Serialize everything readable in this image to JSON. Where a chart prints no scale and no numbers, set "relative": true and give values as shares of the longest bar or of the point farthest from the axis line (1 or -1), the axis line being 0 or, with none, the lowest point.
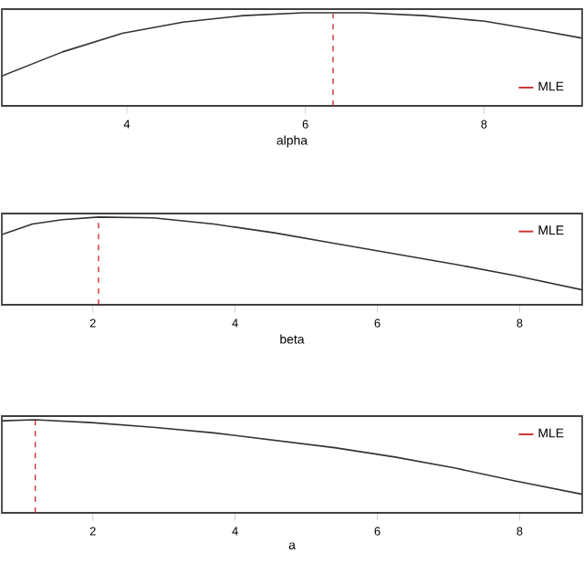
{
  "chart_data": [
    {
      "type": "line",
      "relative": true,
      "xlabel": "alpha",
      "xlim": [
        2.6,
        9.1
      ],
      "xticks": [
        4,
        6,
        8
      ],
      "tick_labels": "x",
      "legend": "bottom right",
      "series": [
        {
          "color": "#333333",
          "x": [
            2.6,
            3.28,
            3.95,
            4.63,
            5.3,
            5.98,
            6.66,
            7.33,
            8.01,
            8.69,
            9.09
          ],
          "values": [
            0.32,
            0.58,
            0.78,
            0.9,
            0.97,
            1.0,
            1.0,
            0.97,
            0.91,
            0.8,
            0.73
          ]
        },
        {
          "name": "MLE",
          "color": "#cc3333",
          "line_style": "dashed",
          "x": [
            6.31,
            6.31
          ],
          "values": [
            0,
            1
          ]
        }
      ]
    },
    {
      "type": "line",
      "relative": true,
      "xlabel": "beta",
      "xlim": [
        0.72,
        8.88
      ],
      "xticks": [
        2,
        4,
        6,
        8
      ],
      "tick_labels": "x",
      "legend": "top right",
      "series": [
        {
          "color": "#333333",
          "x": [
            0.72,
            1.15,
            1.57,
            2.08,
            2.85,
            3.7,
            4.55,
            5.4,
            6.25,
            7.1,
            7.95,
            8.88
          ],
          "values": [
            0.8,
            0.92,
            0.97,
            1.0,
            0.99,
            0.92,
            0.82,
            0.7,
            0.58,
            0.46,
            0.33,
            0.17
          ]
        },
        {
          "name": "MLE",
          "color": "#cc3333",
          "line_style": "dashed",
          "x": [
            2.08,
            2.08
          ],
          "values": [
            0,
            1
          ]
        }
      ]
    },
    {
      "type": "line",
      "relative": true,
      "xlabel": "a",
      "xlim": [
        0.72,
        8.88
      ],
      "xticks": [
        2,
        4,
        6,
        8
      ],
      "tick_labels": "x",
      "legend": "top right",
      "series": [
        {
          "color": "#333333",
          "x": [
            0.72,
            1.19,
            1.98,
            2.85,
            3.7,
            4.55,
            5.4,
            6.25,
            7.1,
            7.95,
            8.88
          ],
          "values": [
            0.99,
            1.0,
            0.97,
            0.92,
            0.86,
            0.78,
            0.7,
            0.6,
            0.48,
            0.34,
            0.2
          ]
        },
        {
          "name": "MLE",
          "color": "#cc3333",
          "line_style": "dashed",
          "x": [
            1.19,
            1.19
          ],
          "values": [
            0,
            1
          ]
        }
      ]
    }
  ]
}
